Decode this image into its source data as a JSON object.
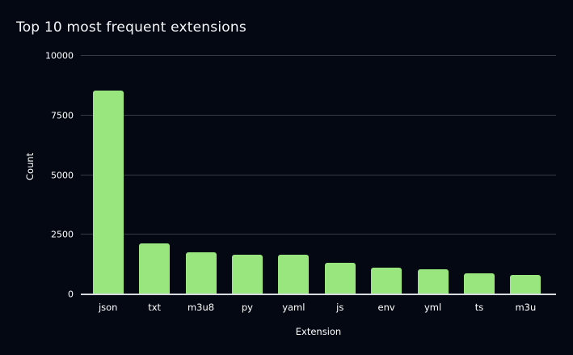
{
  "chart_data": {
    "type": "bar",
    "title": "Top 10 most frequent extensions",
    "xlabel": "Extension",
    "ylabel": "Count",
    "categories": [
      "json",
      "txt",
      "m3u8",
      "py",
      "yaml",
      "js",
      "env",
      "yml",
      "ts",
      "m3u"
    ],
    "values": [
      8550,
      2140,
      1750,
      1670,
      1650,
      1330,
      1130,
      1040,
      890,
      820
    ],
    "ylim": [
      0,
      10000
    ],
    "yticks": [
      0,
      2500,
      5000,
      7500,
      10000
    ],
    "grid": true,
    "legend_position": "none",
    "colors": {
      "bar": "#9ae67e",
      "background": "#030812",
      "gridline": "#363b46",
      "axis_line": "#d6d9dd",
      "text": "#ffffff"
    }
  }
}
